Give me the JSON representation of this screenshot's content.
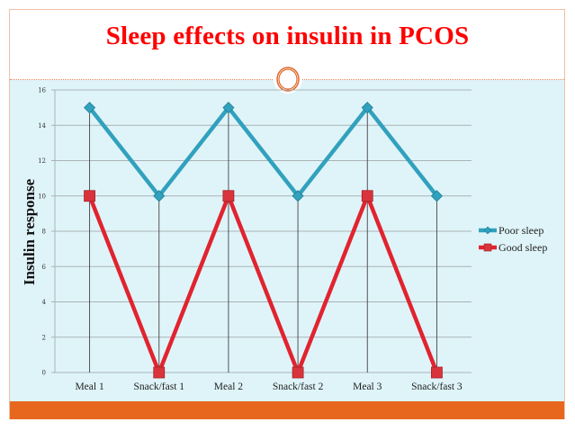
{
  "slide": {
    "title": "Sleep effects on insulin in PCOS",
    "colors": {
      "title": "#ff0000",
      "border": "#f0c0a8",
      "content_bg": "#dff4f9",
      "footer": "#e8671f",
      "ornament": "#e06a2c"
    },
    "ornament_icon": "double-ring-icon"
  },
  "chart_data": {
    "type": "line",
    "title": "",
    "xlabel": "",
    "ylabel": "Insulin response",
    "categories": [
      "Meal 1",
      "Snack/fast 1",
      "Meal 2",
      "Snack/fast 2",
      "Meal 3",
      "Snack/fast 3"
    ],
    "ylim": [
      0,
      16
    ],
    "yticks": [
      0,
      2,
      4,
      6,
      8,
      10,
      12,
      14,
      16
    ],
    "grid": true,
    "legend_position": "right",
    "series": [
      {
        "name": "Poor sleep",
        "color": "#31a1bd",
        "marker": "diamond",
        "values": [
          15,
          10,
          15,
          10,
          15,
          10
        ]
      },
      {
        "name": "Good sleep",
        "color": "#e0242f",
        "marker": "square",
        "values": [
          10,
          0,
          10,
          0,
          10,
          0
        ]
      }
    ]
  }
}
